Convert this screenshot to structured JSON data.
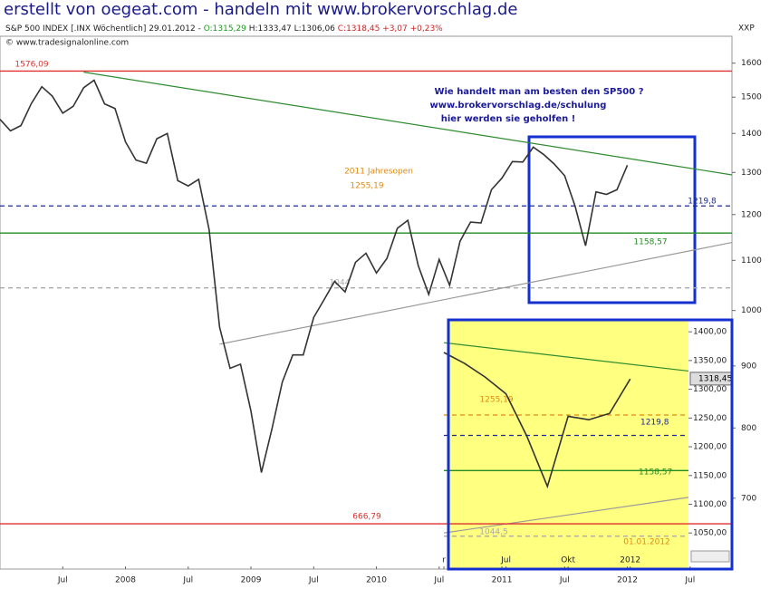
{
  "header": {
    "title": "erstellt von oegeat.com - handeln mit www.brokervorschlag.de",
    "quote": [
      "S&P 500 INDEX [.INX Wöchentlich] 29.01.2012 - ",
      "O:1315,29",
      " H:1333,47 L:1306,06 ",
      "C:1318,45 +3,07 +0,23%"
    ],
    "copyright": "© www.tradesignalonline.com",
    "axis_name": "XXP"
  },
  "chart_data": [
    {
      "type": "line",
      "log_scale": true,
      "grid": false,
      "color": "#333333",
      "x": [
        "2007-01",
        "2007-02",
        "2007-03",
        "2007-04",
        "2007-05",
        "2007-06",
        "2007-07",
        "2007-08",
        "2007-09",
        "2007-10",
        "2007-11",
        "2007-12",
        "2008-01",
        "2008-02",
        "2008-03",
        "2008-04",
        "2008-05",
        "2008-06",
        "2008-07",
        "2008-08",
        "2008-09",
        "2008-10",
        "2008-11",
        "2008-12",
        "2009-01",
        "2009-02",
        "2009-03",
        "2009-04",
        "2009-05",
        "2009-06",
        "2009-07",
        "2009-08",
        "2009-09",
        "2009-10",
        "2009-11",
        "2009-12",
        "2010-01",
        "2010-02",
        "2010-03",
        "2010-04",
        "2010-05",
        "2010-06",
        "2010-07",
        "2010-08",
        "2010-09",
        "2010-10",
        "2010-11",
        "2010-12",
        "2011-01",
        "2011-02",
        "2011-03",
        "2011-04",
        "2011-05",
        "2011-06",
        "2011-07",
        "2011-08",
        "2011-09",
        "2011-10",
        "2011-11",
        "2011-12",
        "2012-01"
      ],
      "values": [
        1438,
        1407,
        1421,
        1482,
        1530,
        1503,
        1455,
        1474,
        1527,
        1549,
        1481,
        1468,
        1378,
        1331,
        1323,
        1386,
        1400,
        1280,
        1267,
        1283,
        1166,
        969,
        896,
        903,
        826,
        735,
        798,
        873,
        919,
        919,
        987,
        1021,
        1057,
        1036,
        1096,
        1115,
        1074,
        1104,
        1169,
        1187,
        1089,
        1031,
        1102,
        1049,
        1141,
        1183,
        1181,
        1258,
        1286,
        1327,
        1326,
        1364,
        1345,
        1321,
        1292,
        1219,
        1131,
        1253,
        1247,
        1258,
        1318
      ],
      "xlim": [
        "2007-01",
        "2012-11"
      ],
      "xticks": [
        {
          "value": "2007-07",
          "label": "Jul"
        },
        {
          "value": "2008-01",
          "label": "2008"
        },
        {
          "value": "2008-07",
          "label": "Jul"
        },
        {
          "value": "2009-01",
          "label": "2009"
        },
        {
          "value": "2009-07",
          "label": "Jul"
        },
        {
          "value": "2010-01",
          "label": "2010"
        },
        {
          "value": "2010-07",
          "label": "Jul"
        },
        {
          "value": "2011-01",
          "label": "2011"
        },
        {
          "value": "2011-07",
          "label": "Jul"
        },
        {
          "value": "2012-01",
          "label": "2012"
        },
        {
          "value": "2012-07",
          "label": "Jul"
        }
      ],
      "ylim": [
        615,
        1684
      ],
      "yticks": [
        700,
        800,
        900,
        1000,
        1100,
        1200,
        1300,
        1400,
        1500,
        1600
      ],
      "hlines": [
        {
          "value": 1576.09,
          "label": "1576,09",
          "color": "#e03030",
          "dash": false
        },
        {
          "value": 666.79,
          "label": "666,79",
          "color": "#e03030",
          "dash": false
        },
        {
          "value": 1219.8,
          "label": "1219,8",
          "color": "#1a2a9a",
          "dash": true
        },
        {
          "value": 1158.57,
          "label": "1158,57",
          "color": "#228b22",
          "dash": false
        },
        {
          "value": 1044,
          "label": "1044",
          "color": "#aaaaaa",
          "dash": true
        }
      ],
      "trendlines": [
        {
          "x": [
            "2007-09",
            "2012-11"
          ],
          "y": [
            1573,
            1294
          ],
          "color": "#2e8b2e"
        },
        {
          "x": [
            "2008-10",
            "2012-11"
          ],
          "y": [
            938,
            1138
          ],
          "color": "#999999"
        }
      ],
      "annotations": [
        "2011 Jahresopen",
        "1255,19",
        "Wie handelt man am besten den SP500 ?",
        "www.brokervorschlag.de/schulung",
        "hier werden sie geholfen !"
      ]
    },
    {
      "type": "line",
      "log_scale": false,
      "grid": false,
      "color": "#333333",
      "x": [
        "2011-04",
        "2011-05",
        "2011-06",
        "2011-07",
        "2011-08",
        "2011-09",
        "2011-10",
        "2011-11",
        "2011-12",
        "2012-01"
      ],
      "values": [
        1364,
        1345,
        1321,
        1292,
        1219,
        1131,
        1253,
        1247,
        1258,
        1318
      ],
      "xlim": [
        "2011-04",
        "2012-06"
      ],
      "xticks": [
        {
          "value": "2011-04",
          "label": "r"
        },
        {
          "value": "2011-07",
          "label": "Jul"
        },
        {
          "value": "2011-10",
          "label": "Okt"
        },
        {
          "value": "2012-01",
          "label": "2012"
        }
      ],
      "ylim": [
        992,
        1416
      ],
      "yticks": [
        {
          "value": 1400,
          "label": "1400,00"
        },
        {
          "value": 1350,
          "label": "1350,00"
        },
        {
          "value": 1300,
          "label": "1300,00"
        },
        {
          "value": 1250,
          "label": "1250,00"
        },
        {
          "value": 1200,
          "label": "1200,00"
        },
        {
          "value": 1150,
          "label": "1150,00"
        },
        {
          "value": 1100,
          "label": "1100,00"
        },
        {
          "value": 1050,
          "label": "1050,00"
        }
      ],
      "hlines": [
        {
          "value": 1219.8,
          "label": "1219,8",
          "color": "#1a2a9a",
          "dash": true
        },
        {
          "value": 1158.57,
          "label": "1158,57",
          "color": "#228b22",
          "dash": false
        },
        {
          "value": 1255.19,
          "label": "1255,19",
          "color": "#e08a10",
          "dash": true
        },
        {
          "value": 1044.5,
          "label": "1044,5",
          "color": "#aaaaaa",
          "dash": true
        }
      ],
      "trendlines": [
        {
          "x": [
            "2011-04",
            "2012-04"
          ],
          "y": [
            1381,
            1331
          ],
          "color": "#2e8b2e"
        },
        {
          "x": [
            "2011-04",
            "2012-04"
          ],
          "y": [
            1050,
            1113
          ],
          "color": "#999999"
        }
      ],
      "last_price": {
        "value": 1318.45,
        "label": "1318,45"
      },
      "annotations": [
        "01.01.2012"
      ]
    }
  ]
}
